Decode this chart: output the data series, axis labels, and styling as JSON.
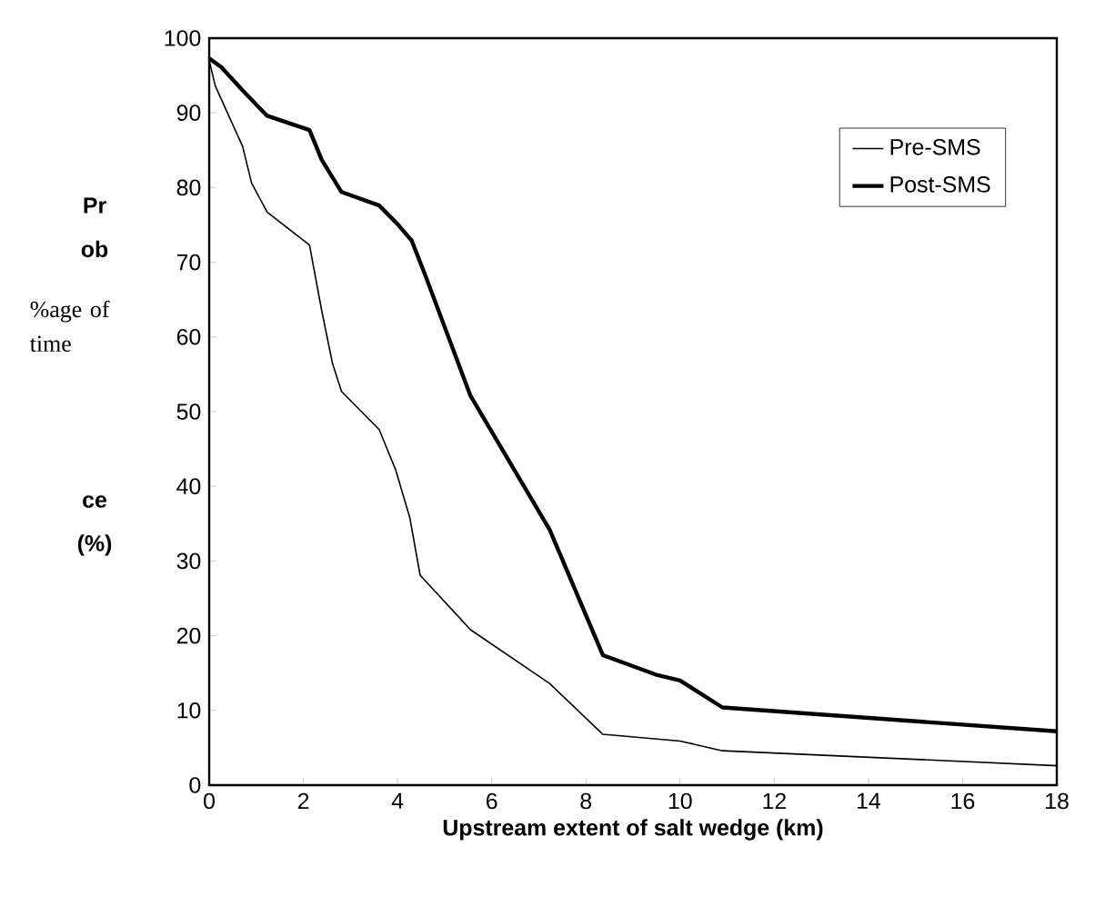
{
  "chart_data": {
    "type": "line",
    "xlabel": "Upstream extent of salt wedge (km)",
    "annotations": [
      "Pr",
      "ob",
      "%age of time",
      "ce",
      "(%)"
    ],
    "xlim": [
      0,
      18
    ],
    "xticks": [
      0,
      2,
      4,
      6,
      8,
      10,
      12,
      14,
      16,
      18
    ],
    "ylim": [
      0,
      100
    ],
    "yticks": [
      0,
      10,
      20,
      30,
      40,
      50,
      60,
      70,
      80,
      90,
      100
    ],
    "legend": "top right",
    "marker": "none",
    "line_style": "solid",
    "series": [
      {
        "name": "Pre-SMS",
        "color": "#000000",
        "x": [
          0,
          0.13,
          0.71,
          0.9,
          1.23,
          2.13,
          2.39,
          2.62,
          2.81,
          3.61,
          3.96,
          4.26,
          4.48,
          5.55,
          7.23,
          8.36,
          10,
          10.9,
          18
        ],
        "values": [
          97,
          93.6,
          85.5,
          80.6,
          76.7,
          72.3,
          63.5,
          56.4,
          52.7,
          47.6,
          42.2,
          35.8,
          28.1,
          20.8,
          13.6,
          6.8,
          5.9,
          4.6,
          2.6
        ]
      },
      {
        "name": "Post-SMS",
        "color": "#000000",
        "x": [
          0,
          0.26,
          0.71,
          1.23,
          2.13,
          2.39,
          2.81,
          3.61,
          4,
          4.3,
          4.58,
          5.55,
          7.23,
          8.36,
          9.48,
          10,
          10.9,
          18
        ],
        "values": [
          97.3,
          96.1,
          93,
          89.6,
          87.7,
          83.7,
          79.4,
          77.6,
          75.1,
          72.9,
          68.4,
          52.1,
          34.2,
          17.4,
          14.8,
          14,
          10.4,
          7.2
        ]
      }
    ]
  }
}
